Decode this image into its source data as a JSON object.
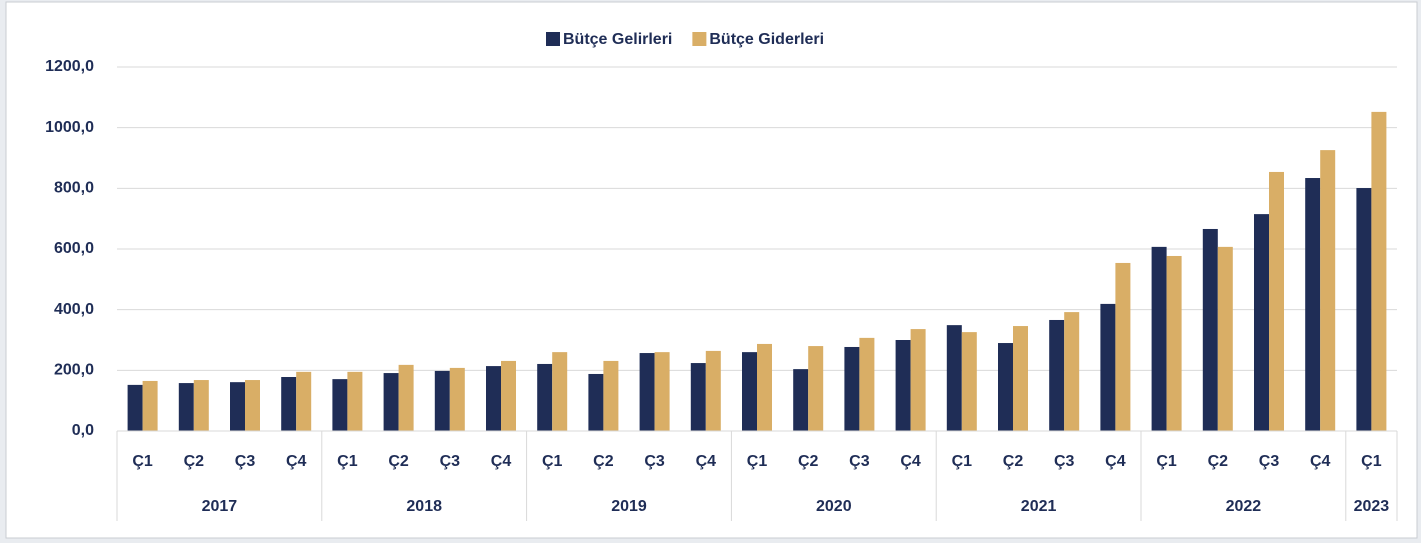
{
  "chart_data": {
    "type": "bar",
    "groups": [
      {
        "label": "2017",
        "categories": [
          "Ç1",
          "Ç2",
          "Ç3",
          "Ç4"
        ]
      },
      {
        "label": "2018",
        "categories": [
          "Ç1",
          "Ç2",
          "Ç3",
          "Ç4"
        ]
      },
      {
        "label": "2019",
        "categories": [
          "Ç1",
          "Ç2",
          "Ç3",
          "Ç4"
        ]
      },
      {
        "label": "2020",
        "categories": [
          "Ç1",
          "Ç2",
          "Ç3",
          "Ç4"
        ]
      },
      {
        "label": "2021",
        "categories": [
          "Ç1",
          "Ç2",
          "Ç3",
          "Ç4"
        ]
      },
      {
        "label": "2022",
        "categories": [
          "Ç1",
          "Ç2",
          "Ç3",
          "Ç4"
        ]
      },
      {
        "label": "2023",
        "categories": [
          "Ç1"
        ]
      }
    ],
    "series": [
      {
        "name": "Bütçe Gelirleri",
        "color": "#1f2d56",
        "values": [
          152,
          158,
          161,
          178,
          171,
          191,
          198,
          214,
          221,
          188,
          257,
          224,
          260,
          204,
          277,
          300,
          349,
          290,
          366,
          419,
          607,
          666,
          715,
          834,
          801
        ]
      },
      {
        "name": "Bütçe Giderleri",
        "color": "#d9ae66",
        "values": [
          165,
          168,
          168,
          195,
          195,
          218,
          208,
          231,
          260,
          231,
          260,
          264,
          287,
          280,
          307,
          336,
          326,
          346,
          392,
          554,
          577,
          607,
          854,
          926,
          1052
        ]
      }
    ],
    "ylim": [
      0,
      1200
    ],
    "yticks": [
      {
        "value": 0,
        "label": "0,0"
      },
      {
        "value": 200,
        "label": "200,0"
      },
      {
        "value": 400,
        "label": "400,0"
      },
      {
        "value": 600,
        "label": "600,0"
      },
      {
        "value": 800,
        "label": "800,0"
      },
      {
        "value": 1000,
        "label": "1000,0"
      },
      {
        "value": 1200,
        "label": "1200,0"
      }
    ],
    "grid": true,
    "legend": "top"
  }
}
